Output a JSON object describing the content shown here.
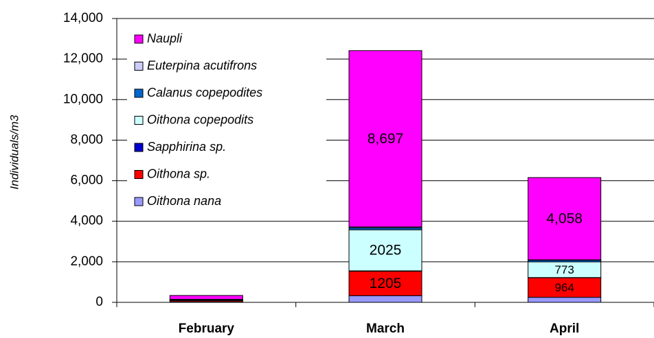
{
  "chart_data": {
    "type": "stacked_bar",
    "y_label": "Individuals/m3",
    "categories": [
      "February",
      "March",
      "April"
    ],
    "series": [
      {
        "name": "Oithona nana",
        "color": "#9999ff",
        "values": [
          20,
          330,
          250
        ]
      },
      {
        "name": "Oithona sp.",
        "color": "#ff0000",
        "values": [
          60,
          1205,
          964
        ],
        "value_labels": [
          null,
          "1205",
          "964"
        ]
      },
      {
        "name": "Sapphirina sp.",
        "color": "#0000cc",
        "values": [
          0,
          20,
          10
        ]
      },
      {
        "name": "Oithona copepodits",
        "color": "#ccffff",
        "values": [
          30,
          2025,
          773
        ],
        "value_labels": [
          null,
          "2025",
          "773"
        ]
      },
      {
        "name": "Calanus copepodites",
        "color": "#0066cc",
        "values": [
          40,
          100,
          80
        ]
      },
      {
        "name": "Euterpina acutifrons",
        "color": "#ccccff",
        "values": [
          0,
          40,
          20
        ]
      },
      {
        "name": "Naupli",
        "color": "#ff00ff",
        "values": [
          190,
          8697,
          4058
        ],
        "value_labels": [
          null,
          "8,697",
          "4,058"
        ]
      }
    ],
    "ylim": [
      0,
      14000
    ],
    "yticks": [
      0,
      {
        "value": 2000,
        "label": "2,000"
      },
      {
        "value": 4000,
        "label": "4,000"
      },
      {
        "value": 6000,
        "label": "6,000"
      },
      {
        "value": 8000,
        "label": "8,000"
      },
      {
        "value": 10000,
        "label": "10,000"
      },
      {
        "value": 12000,
        "label": "12,000"
      },
      {
        "value": 14000,
        "label": "14,000"
      }
    ],
    "grid": true,
    "legend": "top-left"
  }
}
